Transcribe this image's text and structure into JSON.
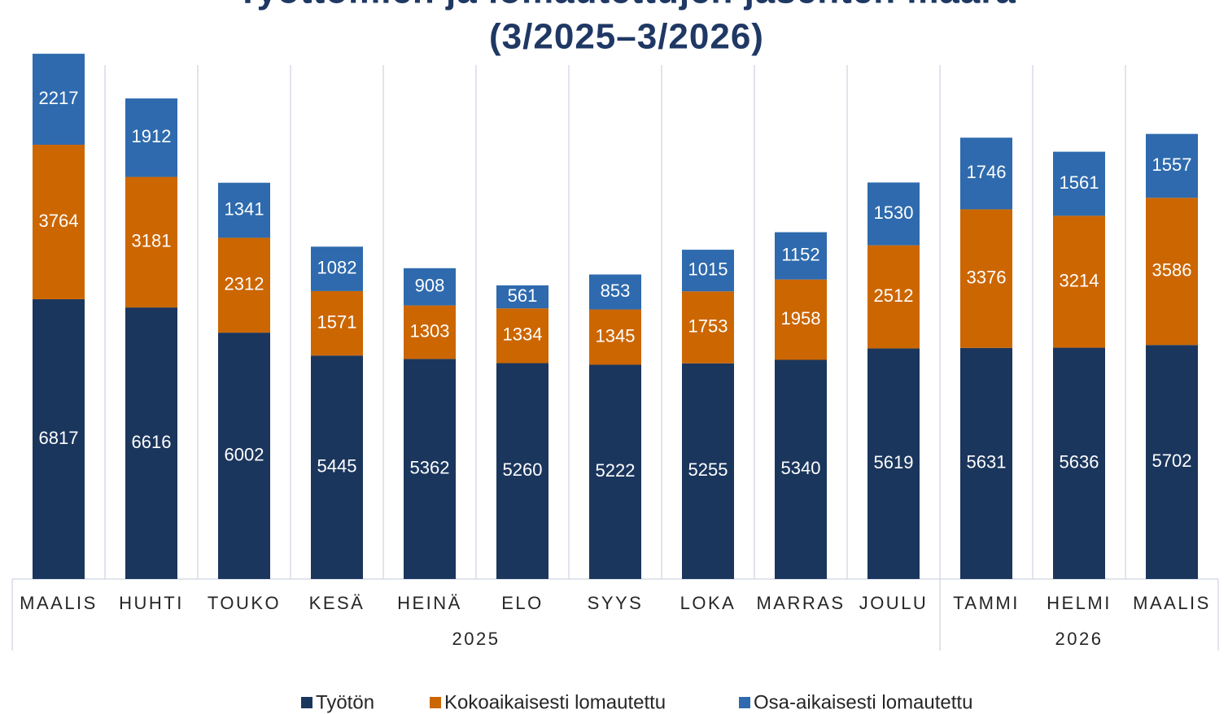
{
  "chart_data": {
    "type": "stacked_bar",
    "title": [
      "Työttömien ja lomautettujen jäsenten määrä",
      "(3/2025–3/2026)"
    ],
    "categories": [
      "MAALIS",
      "HUHTI",
      "TOUKO",
      "KESÄ",
      "HEINÄ",
      "ELO",
      "SYYS",
      "LOKA",
      "MARRAS",
      "JOULU",
      "TAMMI",
      "HELMI",
      "MAALIS"
    ],
    "groups": [
      {
        "label": "2025",
        "count": 10
      },
      {
        "label": "2026",
        "count": 3
      }
    ],
    "series": [
      {
        "name": "Työtön",
        "color": "#1b365d",
        "values": [
          6817,
          6616,
          6002,
          5445,
          5362,
          5260,
          5222,
          5255,
          5340,
          5619,
          5631,
          5636,
          5702
        ]
      },
      {
        "name": "Kokoaikaisesti lomautettu",
        "color": "#cc6600",
        "values": [
          3764,
          3181,
          2312,
          1571,
          1303,
          1334,
          1345,
          1753,
          1958,
          2512,
          3376,
          3214,
          3586
        ]
      },
      {
        "name": "Osa-aikaisesti lomautettu",
        "color": "#2e6aad",
        "values": [
          2217,
          1912,
          1341,
          1082,
          908,
          561,
          853,
          1015,
          1152,
          1530,
          1746,
          1561,
          1557
        ]
      }
    ],
    "ylim": [
      0,
      12800
    ],
    "legend": "bottom"
  }
}
